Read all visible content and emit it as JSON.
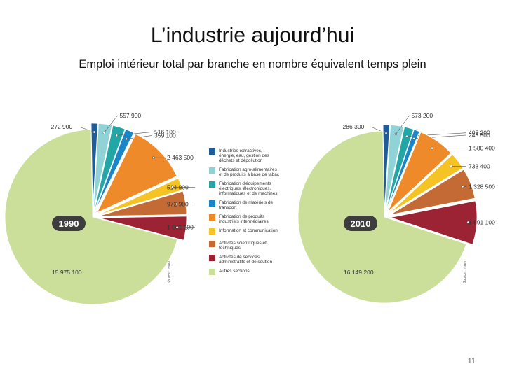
{
  "slide": {
    "title": "L’industrie aujourd’hui",
    "subtitle": "Emploi intérieur total par branche en nombre équivalent temps plein",
    "page_number": "11"
  },
  "chart_data": [
    {
      "type": "pie",
      "title": "1990",
      "source_note": "Source : Insee",
      "slices": [
        {
          "category": "Industries extractives, énergie, eau, gestion des déchets et dépollution",
          "value": 272900,
          "label": "272 900"
        },
        {
          "category": "Fabrication agro-alimentaires et de produits à base de tabac",
          "value": 557900,
          "label": "557 900"
        },
        {
          "category": "Fabrication d'équipements électriques, électroniques, informatiques et de machines",
          "value": 516100,
          "label": "516 100"
        },
        {
          "category": "Fabrication de matériels de transport",
          "value": 359100,
          "label": "359 100"
        },
        {
          "category": "Fabrication de produits industriels intermédiaires",
          "value": 2463500,
          "label": "2 463 500"
        },
        {
          "category": "Information et communication",
          "value": 514900,
          "label": "514 900"
        },
        {
          "category": "Activités scientifiques et techniques",
          "value": 972900,
          "label": "972 900"
        },
        {
          "category": "Activités de services administratifs et de soutien",
          "value": 1001100,
          "label": "1 001 100"
        },
        {
          "category": "Autres sections",
          "value": 15975100,
          "label": "15 975 100"
        }
      ]
    },
    {
      "type": "pie",
      "title": "2010",
      "source_note": "Source : Insee",
      "slices": [
        {
          "category": "Industries extractives, énergie, eau, gestion des déchets et dépollution",
          "value": 286300,
          "label": "286 300"
        },
        {
          "category": "Fabrication agro-alimentaires et de produits à base de tabac",
          "value": 573200,
          "label": "573 200"
        },
        {
          "category": "Fabrication d'équipements électriques, électroniques, informatiques et de machines",
          "value": 405200,
          "label": "405 200"
        },
        {
          "category": "Fabrication de matériels de transport",
          "value": 243500,
          "label": "243 500"
        },
        {
          "category": "Fabrication de produits industriels intermédiaires",
          "value": 1580400,
          "label": "1 580 400"
        },
        {
          "category": "Information et communication",
          "value": 733400,
          "label": "733 400"
        },
        {
          "category": "Activités scientifiques et techniques",
          "value": 1328500,
          "label": "1 328 500"
        },
        {
          "category": "Activités de services administratifs et de soutien",
          "value": 1891100,
          "label": "1 891 100"
        },
        {
          "category": "Autres sections",
          "value": 16149200,
          "label": "16 149 200"
        }
      ]
    }
  ],
  "legend": {
    "items": [
      {
        "label": "Industries extractives, énergie, eau, gestion des déchets et dépollution",
        "color": "#1f5c9a"
      },
      {
        "label": "Fabrication agro-alimentaires et de produits à base de tabac",
        "color": "#8fd3d6"
      },
      {
        "label": "Fabrication d'équipements électriques, électroniques, informatiques et de machines",
        "color": "#23a7a6"
      },
      {
        "label": "Fabrication de matériels de transport",
        "color": "#1a86c8"
      },
      {
        "label": "Fabrication de produits industriels intermédiaires",
        "color": "#ef8a2a"
      },
      {
        "label": "Information et communication",
        "color": "#f5c323"
      },
      {
        "label": "Activités scientifiques et techniques",
        "color": "#c46a35"
      },
      {
        "label": "Activités de services administratifs et de soutien",
        "color": "#9b2333"
      },
      {
        "label": "Autres sections",
        "color": "#cbdf9a"
      }
    ]
  }
}
